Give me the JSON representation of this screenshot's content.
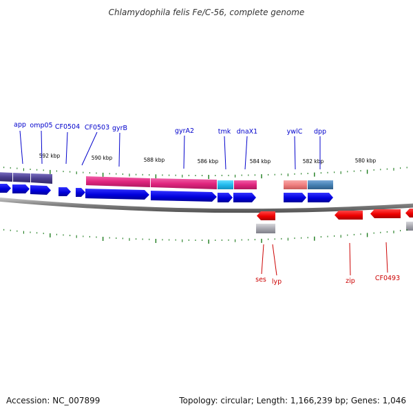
{
  "title": "Chlamydophila felis Fe/C-56, complete genome",
  "footer": {
    "accession": "Accession: NC_007899",
    "summary": "Topology: circular; Length: 1,166,239 bp; Genes: 1,046"
  },
  "scale_labels": [
    "592 kbp",
    "590 kbp",
    "588 kbp",
    "586 kbp",
    "584 kbp",
    "582 kbp",
    "580 kbp"
  ],
  "forward_genes": [
    "app",
    "omp05",
    "CF0504",
    "CF0503",
    "gyrB",
    "gyrA2",
    "tmk",
    "dnaX1",
    "ywlC",
    "dpp"
  ],
  "reverse_genes": [
    "ses",
    "lyp",
    "zip",
    "CF0493"
  ],
  "colors": {
    "gene_forward": "#0000ee",
    "gene_reverse": "#ee0000",
    "cog_magenta": "#e0257e",
    "cog_cyan": "#22bbee",
    "cog_salmon": "#f08080",
    "cog_steelblue": "#4682b4",
    "cog_slate": "#4b3f8f",
    "cog_gray": "#a0a0a8",
    "ticks": "#1a7a1a",
    "backbone": "#808080"
  }
}
